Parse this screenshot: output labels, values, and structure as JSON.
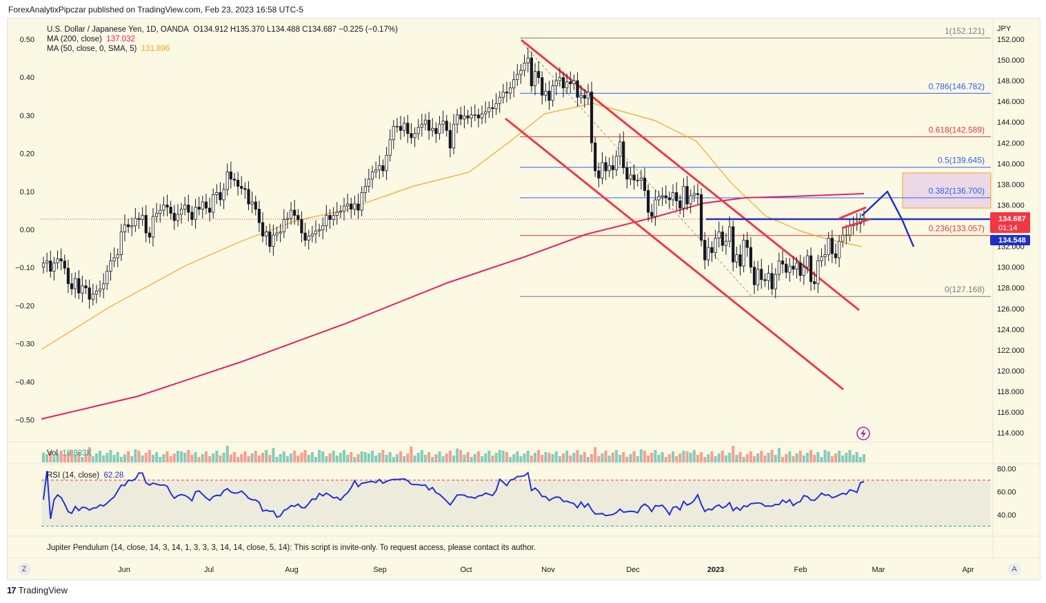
{
  "header": {
    "published": "ForexAnalytixPipczar published on TradingView.com, Feb 23, 2023 16:58 UTC-5"
  },
  "footer": {
    "brand": "TradingView",
    "logo": "17"
  },
  "legend": {
    "symbol": "U.S. Dollar / Japanese Yen, 1D, OANDA",
    "ohlc": "O134.912  H135.370  L134.488  C134.687  −0.225 (−0.17%)",
    "ma200": {
      "label": "MA (200, close)",
      "value": "137.032",
      "color": "#e91e63"
    },
    "ma50": {
      "label": "MA (50, close, 0, SMA, 5)",
      "value": "131.896",
      "color": "#f5a623"
    },
    "vol": {
      "label": "Vol",
      "value": "18.883K"
    },
    "rsi": {
      "label": "RSI (14, close)",
      "value": "62.28"
    },
    "pendulum": "Jupiter Pendulum (14, close, 14, 3, 14, 1, 3, 3, 3, 14, 14, close, 5, 14): This script is invite-only. To request access, please contact its author."
  },
  "axis_buttons": {
    "left": "Z",
    "right": "A"
  },
  "price_labels": {
    "current": "134.687",
    "countdown": "01:14",
    "line": "134.548"
  },
  "currency": "JPY",
  "chart_data": {
    "type": "candlestick",
    "title": "U.S. Dollar / Japanese Yen, 1D, OANDA",
    "price_axis": {
      "unit": "JPY",
      "ticks": [
        152,
        150,
        148,
        146,
        144,
        142,
        140,
        138,
        136,
        134,
        132,
        130,
        128,
        126,
        124,
        122,
        120,
        118,
        116,
        114
      ],
      "range": [
        113.3,
        153.7
      ]
    },
    "left_axis": {
      "ticks": [
        "0.50",
        "0.40",
        "0.30",
        "0.20",
        "0.10",
        "0.00",
        "−0.10",
        "−0.20",
        "−0.30",
        "−0.40",
        "−0.50"
      ]
    },
    "time_axis": {
      "ticks": [
        "Jun",
        "Jul",
        "Aug",
        "Sep",
        "Oct",
        "Nov",
        "Dec",
        "2023",
        "Feb",
        "Mar",
        "Apr"
      ]
    },
    "fibonacci": [
      {
        "label": "1(152.121)",
        "level": 152.121,
        "color": "#787b86"
      },
      {
        "label": "0.786(146.782)",
        "level": 146.782,
        "color": "#2962ff"
      },
      {
        "label": "0.618(142.589)",
        "level": 142.589,
        "color": "#e53935"
      },
      {
        "label": "0.5(139.645)",
        "level": 139.645,
        "color": "#2962ff"
      },
      {
        "label": "0.382(136.700)",
        "level": 136.7,
        "color": "#2962ff"
      },
      {
        "label": "0.236(133.057)",
        "level": 133.057,
        "color": "#e53935"
      },
      {
        "label": "0(127.168)",
        "level": 127.168,
        "color": "#787b86"
      }
    ],
    "candles_close": [
      130.4,
      130.6,
      129.6,
      130.4,
      130.8,
      130.6,
      129.9,
      128.4,
      127.9,
      128.9,
      127.5,
      128.2,
      128.0,
      126.9,
      127.4,
      127.7,
      127.9,
      128.4,
      129.6,
      130.6,
      130.9,
      131.2,
      133.4,
      134.1,
      133.9,
      134.0,
      134.7,
      134.6,
      135.0,
      133.3,
      132.9,
      134.9,
      135.2,
      135.5,
      136.0,
      135.8,
      135.2,
      134.5,
      135.1,
      135.6,
      136.0,
      135.3,
      134.6,
      135.8,
      135.6,
      136.3,
      135.7,
      135.3,
      137.0,
      137.2,
      136.5,
      137.5,
      139.2,
      138.5,
      138.4,
      137.8,
      137.6,
      137.5,
      136.1,
      136.3,
      135.6,
      134.3,
      133.0,
      133.4,
      132.0,
      133.1,
      133.3,
      133.4,
      134.6,
      134.7,
      135.5,
      135.0,
      134.6,
      133.3,
      132.6,
      133.0,
      133.2,
      133.5,
      133.6,
      134.0,
      135.0,
      134.6,
      135.0,
      135.3,
      135.4,
      135.9,
      136.1,
      135.6,
      136.1,
      135.5,
      137.2,
      137.8,
      138.5,
      139.2,
      139.4,
      139.8,
      139.3,
      140.8,
      142.3,
      143.6,
      143.6,
      143.2,
      143.9,
      142.9,
      142.5,
      142.9,
      143.5,
      143.8,
      144.2,
      143.2,
      143.4,
      142.9,
      143.8,
      144.1,
      143.2,
      141.5,
      143.8,
      144.7,
      144.3,
      144.6,
      144.4,
      144.7,
      144.7,
      144.4,
      144.8,
      145.0,
      145.4,
      145.3,
      145.8,
      146.4,
      146.9,
      146.8,
      147.3,
      148.1,
      148.6,
      149.0,
      149.7,
      150.2,
      147.5,
      148.9,
      148.3,
      146.6,
      147.0,
      146.1,
      147.5,
      148.0,
      148.3,
      147.3,
      147.9,
      147.7,
      148.0,
      146.4,
      146.6,
      146.3,
      146.9,
      142.0,
      139.3,
      138.6,
      140.1,
      139.3,
      139.8,
      139.4,
      140.7,
      142.1,
      139.6,
      138.5,
      138.9,
      138.4,
      138.4,
      138.6,
      137.4,
      135.3,
      134.9,
      136.5,
      136.8,
      136.9,
      136.7,
      136.5,
      137.2,
      136.4,
      135.7,
      137.8,
      136.1,
      136.9,
      137.1,
      137.0,
      132.6,
      130.7,
      131.9,
      131.4,
      132.8,
      133.4,
      132.1,
      132.5,
      133.9,
      130.5,
      131.2,
      130.1,
      132.6,
      131.9,
      130.0,
      128.3,
      129.8,
      128.8,
      128.7,
      129.4,
      127.9,
      129.3,
      130.6,
      130.3,
      129.5,
      130.1,
      129.8,
      130.4,
      129.2,
      130.0,
      131.1,
      128.6,
      128.4,
      130.6,
      131.0,
      131.2,
      132.8,
      131.3,
      130.9,
      132.5,
      133.1,
      133.1,
      134.0,
      134.1,
      134.2,
      134.6,
      134.7
    ],
    "ma200_endpoint": 137.032,
    "ma50_endpoint": 131.896,
    "volume": {
      "last": "18.883K"
    },
    "rsi": {
      "length": 14,
      "last": 62.28,
      "levels": [
        70,
        30
      ],
      "ticks": [
        "80.00",
        "60.00",
        "40.00"
      ]
    }
  }
}
